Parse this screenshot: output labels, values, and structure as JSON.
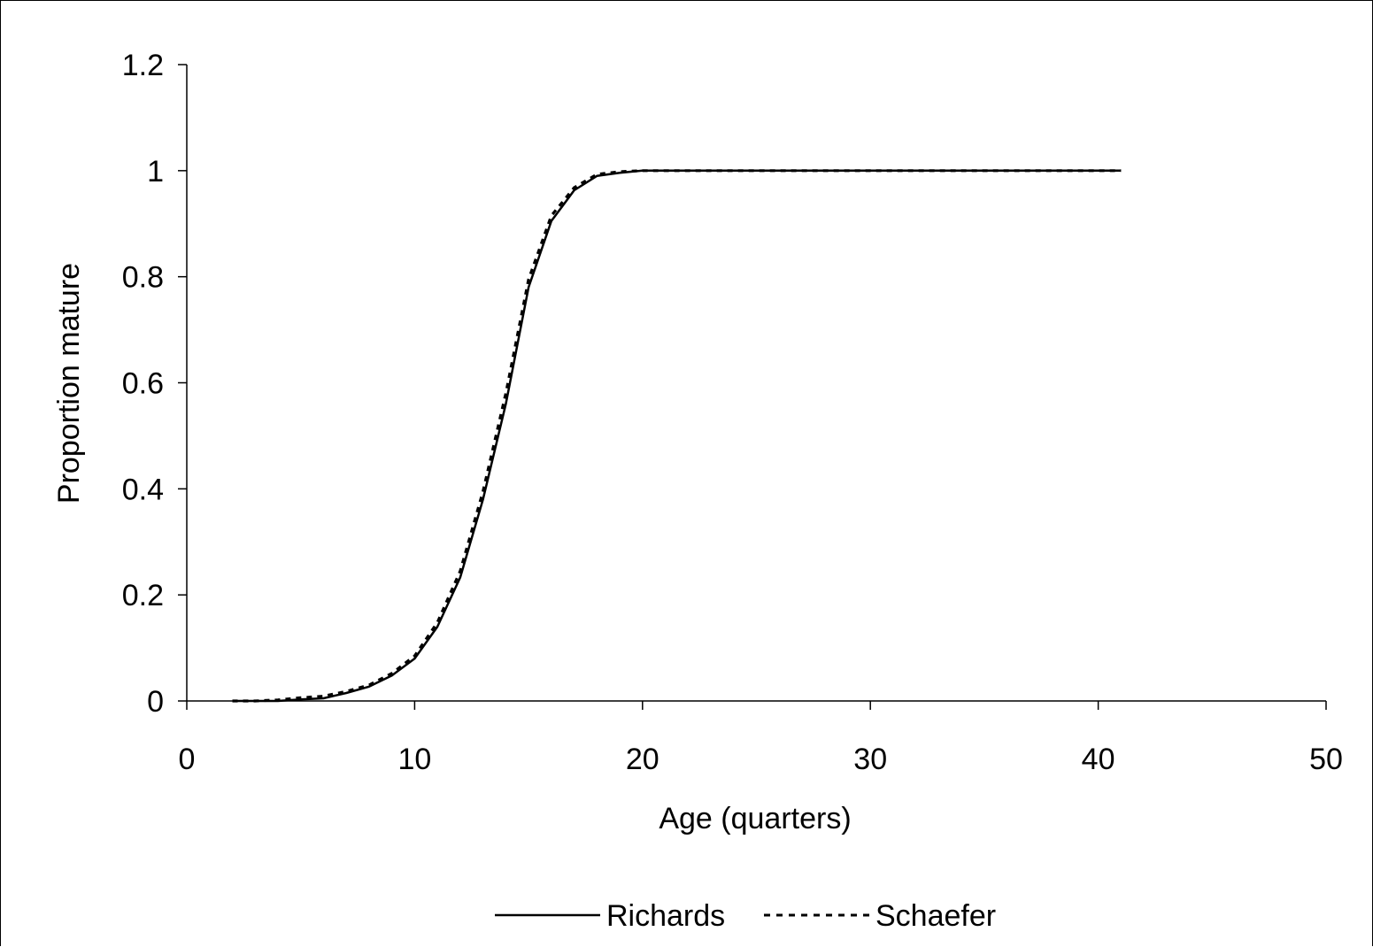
{
  "chart_data": {
    "type": "line",
    "title": "",
    "xlabel": "Age (quarters)",
    "ylabel": "Proportion mature",
    "xlim": [
      0,
      50
    ],
    "ylim": [
      0,
      1.2
    ],
    "xticks": [
      0,
      10,
      20,
      30,
      40,
      50
    ],
    "yticks": [
      0,
      0.2,
      0.4,
      0.6,
      0.8,
      1,
      1.2
    ],
    "xtick_labels": [
      "0",
      "10",
      "20",
      "30",
      "40",
      "50"
    ],
    "ytick_labels": [
      "0",
      "0.2",
      "0.4",
      "0.6",
      "0.8",
      "1",
      "1.2"
    ],
    "grid": false,
    "legend_position": "bottom",
    "series": [
      {
        "name": "Richards",
        "style": "solid",
        "color": "#000000",
        "x": [
          2,
          3,
          4,
          5,
          6,
          7,
          8,
          9,
          10,
          11,
          12,
          13,
          14,
          15,
          16,
          17,
          18,
          19,
          20,
          21,
          22,
          23,
          24,
          25,
          26,
          27,
          28,
          29,
          30,
          31,
          32,
          33,
          34,
          35,
          36,
          37,
          38,
          39,
          40,
          41
        ],
        "y": [
          0,
          0,
          0,
          0.003,
          0.005,
          0.015,
          0.027,
          0.048,
          0.08,
          0.14,
          0.233,
          0.38,
          0.56,
          0.78,
          0.905,
          0.963,
          0.99,
          0.996,
          1,
          1,
          1,
          1,
          1,
          1,
          1,
          1,
          1,
          1,
          1,
          1,
          1,
          1,
          1,
          1,
          1,
          1,
          1,
          1,
          1,
          1
        ]
      },
      {
        "name": "Schaefer",
        "style": "dashed",
        "color": "#000000",
        "x": [
          2,
          3,
          4,
          5,
          6,
          7,
          8,
          9,
          10,
          11,
          12,
          13,
          14,
          15,
          16,
          17,
          18,
          19,
          20,
          21,
          22,
          23,
          24,
          25,
          26,
          27,
          28,
          29,
          30,
          31,
          32,
          33,
          34,
          35,
          36,
          37,
          38,
          39,
          40,
          41
        ],
        "y": [
          0,
          0,
          0.002,
          0.006,
          0.009,
          0.018,
          0.03,
          0.052,
          0.085,
          0.148,
          0.245,
          0.395,
          0.58,
          0.795,
          0.915,
          0.968,
          0.993,
          0.998,
          1,
          1,
          1,
          1,
          1,
          1,
          1,
          1,
          1,
          1,
          1,
          1,
          1,
          1,
          1,
          1,
          1,
          1,
          1,
          1,
          1,
          1
        ]
      }
    ]
  }
}
